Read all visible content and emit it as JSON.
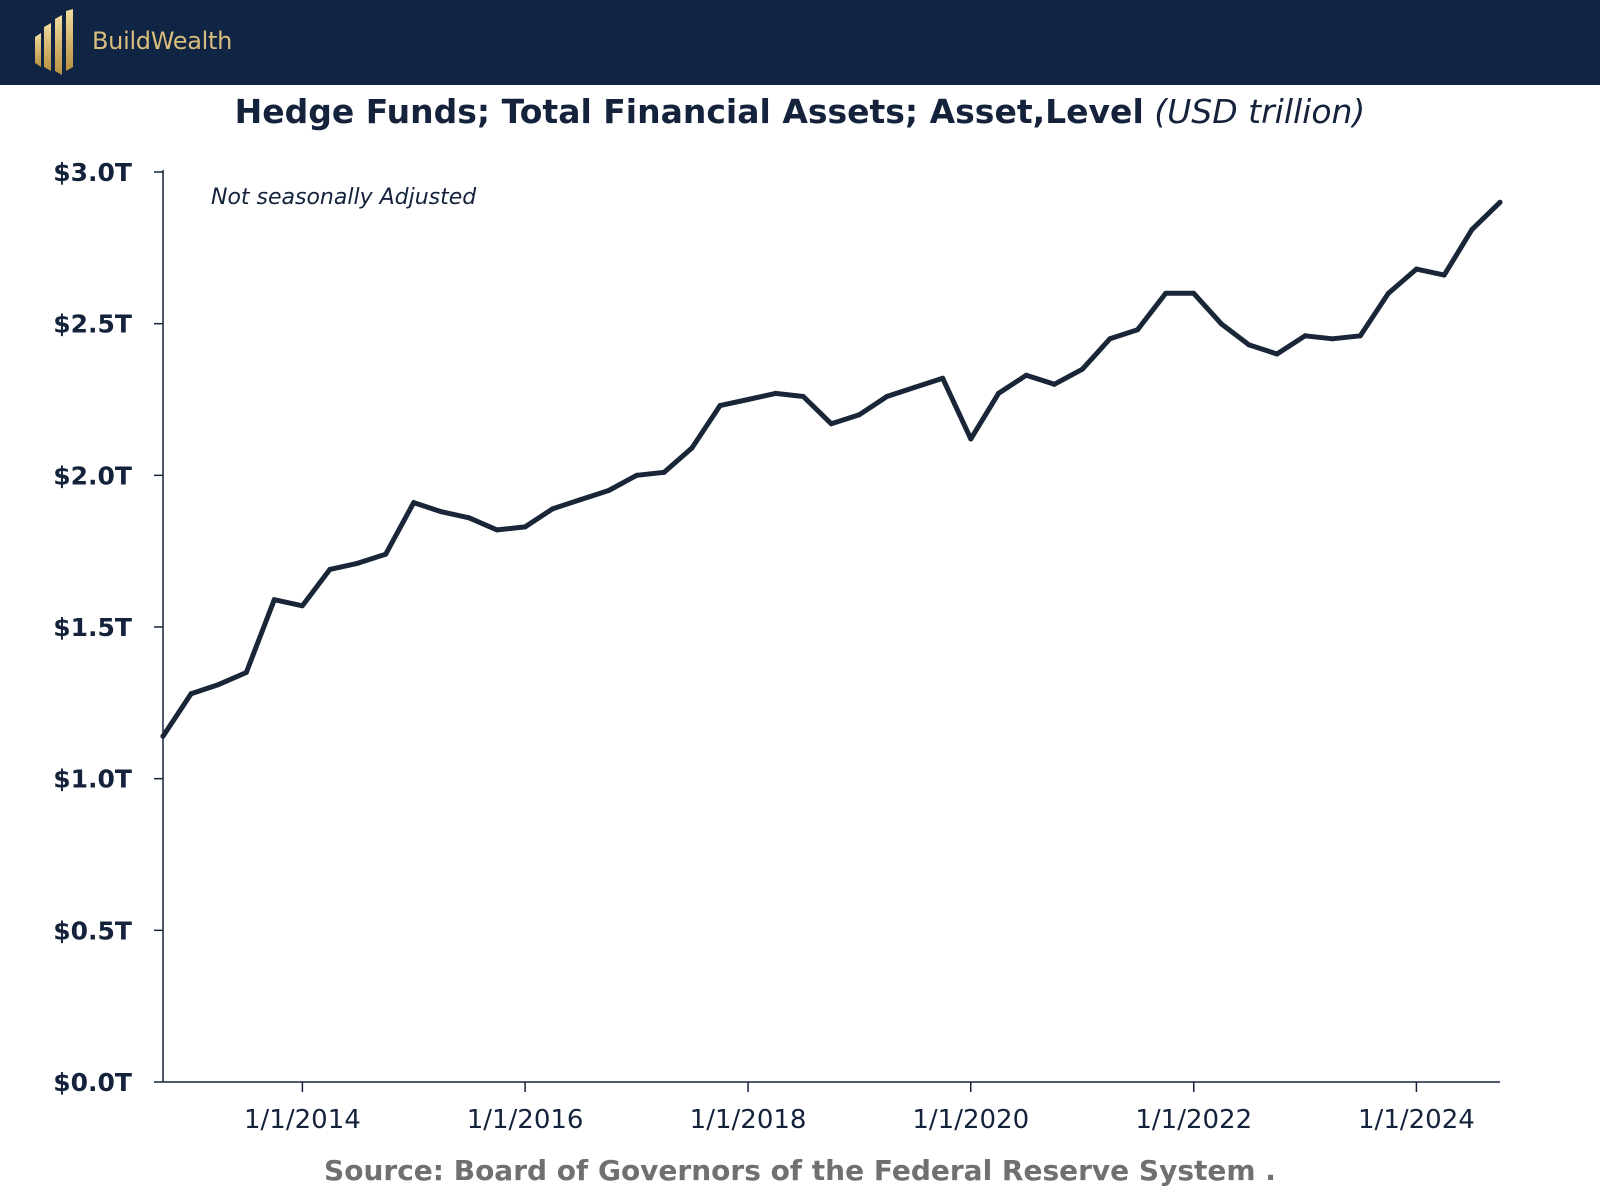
{
  "brand": {
    "name": "BuildWealth",
    "logo_icon": "buildwealth-bars-logo",
    "colors": {
      "header_bg": "#0f2543",
      "gold": "#d9bd7c"
    }
  },
  "source_text": "Source: Board of Governors of the Federal Reserve System .",
  "chart_data": {
    "type": "line",
    "title": "Hedge Funds; Total Financial Assets; Asset,Level",
    "title_unit": "(USD trillion)",
    "note": "Not seasonally Adjusted",
    "xlabel": "",
    "ylabel": "",
    "ylim": [
      0,
      3.0
    ],
    "xlim": [
      "2012-10-01",
      "2024-10-01"
    ],
    "y_ticks": [
      0,
      0.5,
      1.0,
      1.5,
      2.0,
      2.5,
      3.0
    ],
    "y_tick_labels": [
      "$0.0T",
      "$0.5T",
      "$1.0T",
      "$1.5T",
      "$2.0T",
      "$2.5T",
      "$3.0T"
    ],
    "x_ticks": [
      "2014-01-01",
      "2016-01-01",
      "2018-01-01",
      "2020-01-01",
      "2022-01-01",
      "2024-01-01"
    ],
    "x_tick_labels": [
      "1/1/2014",
      "1/1/2016",
      "1/1/2018",
      "1/1/2020",
      "1/1/2022",
      "1/1/2024"
    ],
    "grid": false,
    "line_color": "#182637",
    "series": [
      {
        "x": [
          "2012-10-01",
          "2013-01-01",
          "2013-04-01",
          "2013-07-01",
          "2013-10-01",
          "2014-01-01",
          "2014-04-01",
          "2014-07-01",
          "2014-10-01",
          "2015-01-01",
          "2015-04-01",
          "2015-07-01",
          "2015-10-01",
          "2016-01-01",
          "2016-04-01",
          "2016-07-01",
          "2016-10-01",
          "2017-01-01",
          "2017-04-01",
          "2017-07-01",
          "2017-10-01",
          "2018-01-01",
          "2018-04-01",
          "2018-07-01",
          "2018-10-01",
          "2019-01-01",
          "2019-04-01",
          "2019-07-01",
          "2019-10-01",
          "2020-01-01",
          "2020-04-01",
          "2020-07-01",
          "2020-10-01",
          "2021-01-01",
          "2021-04-01",
          "2021-07-01",
          "2021-10-01",
          "2022-01-01",
          "2022-04-01",
          "2022-07-01",
          "2022-10-01",
          "2023-01-01",
          "2023-04-01",
          "2023-07-01",
          "2023-10-01",
          "2024-01-01",
          "2024-04-01",
          "2024-07-01",
          "2024-10-01"
        ],
        "values": [
          1.14,
          1.28,
          1.31,
          1.35,
          1.59,
          1.57,
          1.69,
          1.71,
          1.74,
          1.91,
          1.88,
          1.86,
          1.82,
          1.83,
          1.89,
          1.92,
          1.95,
          2.0,
          2.01,
          2.09,
          2.23,
          2.25,
          2.27,
          2.26,
          2.17,
          2.2,
          2.26,
          2.29,
          2.32,
          2.12,
          2.27,
          2.33,
          2.3,
          2.35,
          2.45,
          2.48,
          2.6,
          2.6,
          2.5,
          2.43,
          2.4,
          2.46,
          2.45,
          2.46,
          2.6,
          2.68,
          2.66,
          2.81,
          2.9
        ]
      }
    ]
  }
}
